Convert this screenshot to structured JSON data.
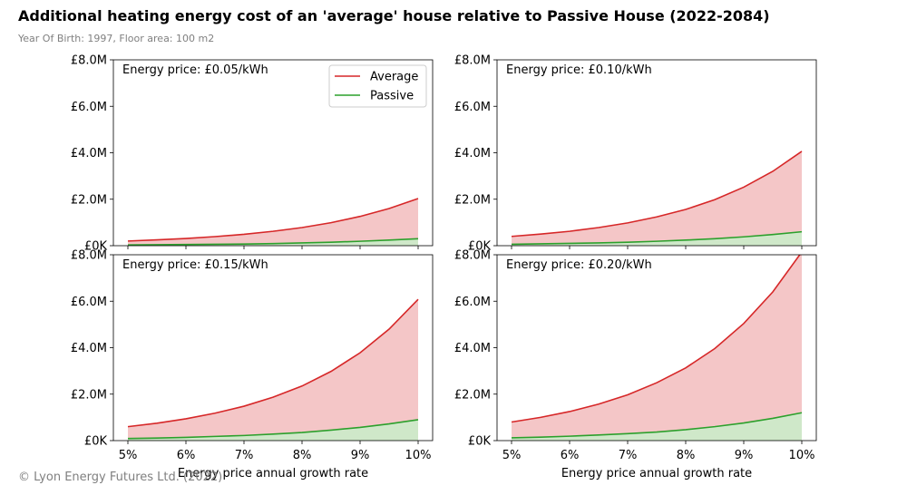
{
  "title": "Additional heating energy cost of an 'average' house relative to Passive House (2022-2084)",
  "subtitle": "Year Of Birth: 1997, Floor area: 100 m2",
  "footer": "© Lyon Energy Futures Ltd. (2022)",
  "colors": {
    "average": "#d62728",
    "passive": "#2ca02c",
    "average_fill": "#f4c6c7",
    "passive_fill": "#cfe8c9"
  },
  "chart_data": [
    {
      "type": "area",
      "panel_label": "Energy price: £0.05/kWh",
      "x": [
        5,
        5.5,
        6,
        6.5,
        7,
        7.5,
        8,
        8.5,
        9,
        9.5,
        10
      ],
      "x_tick_labels": [
        "5%",
        "6%",
        "7%",
        "8%",
        "9%",
        "10%"
      ],
      "xlabel": "",
      "y_tick_labels": [
        "£0K",
        "£2.0M",
        "£4.0M",
        "£6.0M",
        "£8.0M"
      ],
      "ylim": [
        0,
        8.0
      ],
      "y_units": "£M",
      "legend": "upper-right",
      "series": [
        {
          "name": "Average",
          "values": [
            0.2,
            0.25,
            0.31,
            0.39,
            0.49,
            0.62,
            0.78,
            0.99,
            1.26,
            1.6,
            2.03
          ]
        },
        {
          "name": "Passive",
          "values": [
            0.03,
            0.04,
            0.05,
            0.06,
            0.07,
            0.09,
            0.12,
            0.15,
            0.19,
            0.24,
            0.3
          ]
        }
      ]
    },
    {
      "type": "area",
      "panel_label": "Energy price: £0.10/kWh",
      "x": [
        5,
        5.5,
        6,
        6.5,
        7,
        7.5,
        8,
        8.5,
        9,
        9.5,
        10
      ],
      "x_tick_labels": [
        "5%",
        "6%",
        "7%",
        "8%",
        "9%",
        "10%"
      ],
      "xlabel": "",
      "y_tick_labels": [
        "£0K",
        "£2.0M",
        "£4.0M",
        "£6.0M",
        "£8.0M"
      ],
      "ylim": [
        0,
        8.0
      ],
      "y_units": "£M",
      "series": [
        {
          "name": "Average",
          "values": [
            0.4,
            0.5,
            0.62,
            0.78,
            0.98,
            1.24,
            1.56,
            1.98,
            2.52,
            3.2,
            4.06
          ]
        },
        {
          "name": "Passive",
          "values": [
            0.06,
            0.08,
            0.1,
            0.12,
            0.15,
            0.19,
            0.24,
            0.3,
            0.38,
            0.48,
            0.6
          ]
        }
      ]
    },
    {
      "type": "area",
      "panel_label": "Energy price: £0.15/kWh",
      "x": [
        5,
        5.5,
        6,
        6.5,
        7,
        7.5,
        8,
        8.5,
        9,
        9.5,
        10
      ],
      "x_tick_labels": [
        "5%",
        "6%",
        "7%",
        "8%",
        "9%",
        "10%"
      ],
      "xlabel": "Energy price annual growth rate",
      "y_tick_labels": [
        "£0K",
        "£2.0M",
        "£4.0M",
        "£6.0M",
        "£8.0M"
      ],
      "ylim": [
        0,
        8.0
      ],
      "y_units": "£M",
      "series": [
        {
          "name": "Average",
          "values": [
            0.6,
            0.75,
            0.94,
            1.18,
            1.48,
            1.87,
            2.35,
            2.98,
            3.78,
            4.8,
            6.08
          ]
        },
        {
          "name": "Passive",
          "values": [
            0.09,
            0.11,
            0.14,
            0.18,
            0.22,
            0.28,
            0.35,
            0.45,
            0.57,
            0.72,
            0.9
          ]
        }
      ]
    },
    {
      "type": "area",
      "panel_label": "Energy price: £0.20/kWh",
      "x": [
        5,
        5.5,
        6,
        6.5,
        7,
        7.5,
        8,
        8.5,
        9,
        9.5,
        10
      ],
      "x_tick_labels": [
        "5%",
        "6%",
        "7%",
        "8%",
        "9%",
        "10%"
      ],
      "xlabel": "Energy price annual growth rate",
      "y_tick_labels": [
        "£0K",
        "£2.0M",
        "£4.0M",
        "£6.0M",
        "£8.0M"
      ],
      "ylim": [
        0,
        8.0
      ],
      "y_units": "£M",
      "series": [
        {
          "name": "Average",
          "values": [
            0.8,
            1.0,
            1.25,
            1.57,
            1.97,
            2.49,
            3.13,
            3.96,
            5.04,
            6.4,
            8.12
          ]
        },
        {
          "name": "Passive",
          "values": [
            0.12,
            0.15,
            0.19,
            0.24,
            0.3,
            0.37,
            0.47,
            0.6,
            0.76,
            0.96,
            1.2
          ]
        }
      ]
    }
  ]
}
